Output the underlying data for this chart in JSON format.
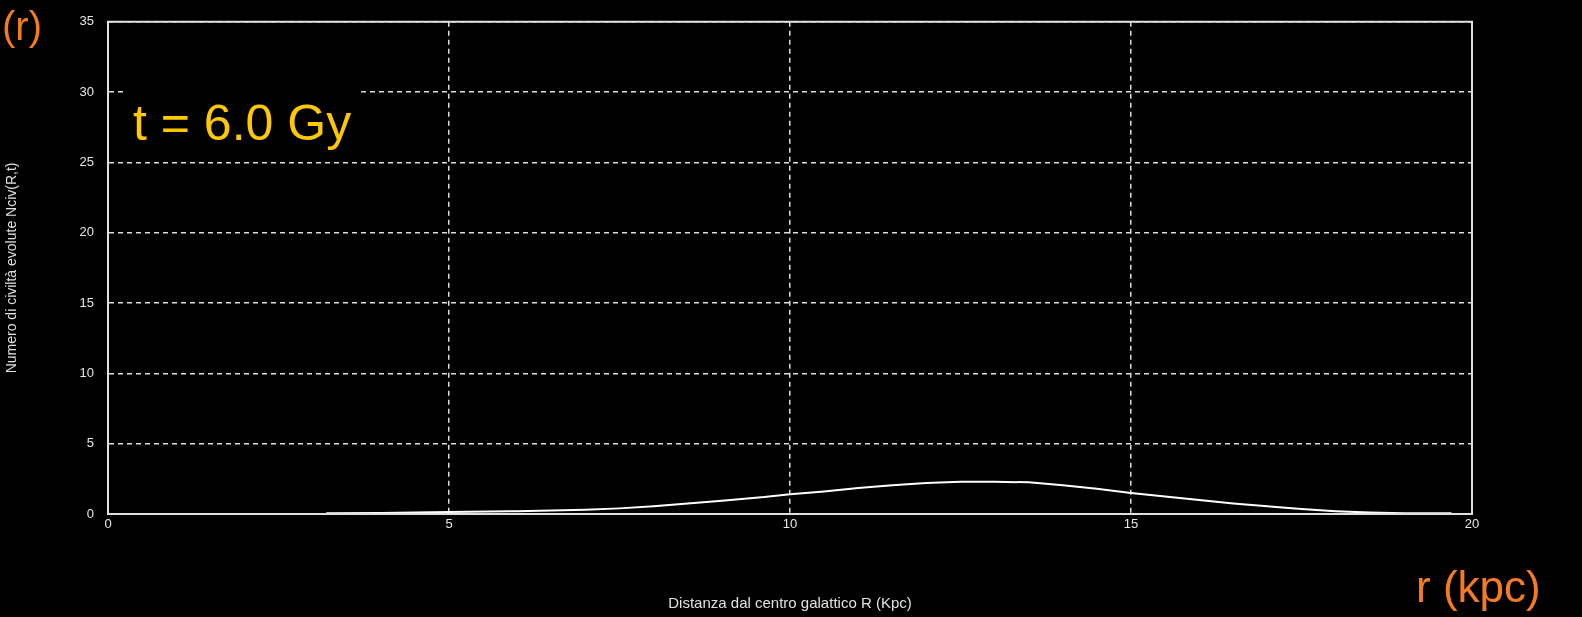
{
  "chart_data": {
    "type": "line",
    "xlabel": "Distanza dal centro galattico R (Kpc)",
    "ylabel": "Numero di civiltà evolute Nciv(R,t)",
    "annotations": [
      "t = 6.0 Gy",
      "(r)",
      "r (kpc)"
    ],
    "x": [
      3.2,
      4,
      5,
      6,
      7,
      7.5,
      8,
      8.5,
      9,
      9.5,
      10,
      10.5,
      11,
      11.5,
      12,
      12.5,
      13,
      13.5,
      14,
      14.5,
      15,
      15.5,
      16,
      16.5,
      17,
      17.5,
      18,
      18.5,
      19,
      19.7
    ],
    "series": [
      {
        "color": "#ffffff",
        "values": [
          0.05,
          0.08,
          0.15,
          0.2,
          0.3,
          0.4,
          0.55,
          0.75,
          0.95,
          1.15,
          1.4,
          1.6,
          1.85,
          2.05,
          2.2,
          2.3,
          2.3,
          2.25,
          2.05,
          1.8,
          1.5,
          1.25,
          1.0,
          0.75,
          0.55,
          0.35,
          0.2,
          0.1,
          0.05,
          0.05
        ]
      }
    ],
    "xlim": [
      0,
      20
    ],
    "xticks": [
      0,
      5,
      10,
      15,
      20
    ],
    "ylim": [
      0,
      35
    ],
    "yticks": [
      0,
      5,
      10,
      15,
      20,
      25,
      30,
      35
    ],
    "grid": true,
    "legend": false,
    "marker": "none",
    "line_style": "solid"
  }
}
